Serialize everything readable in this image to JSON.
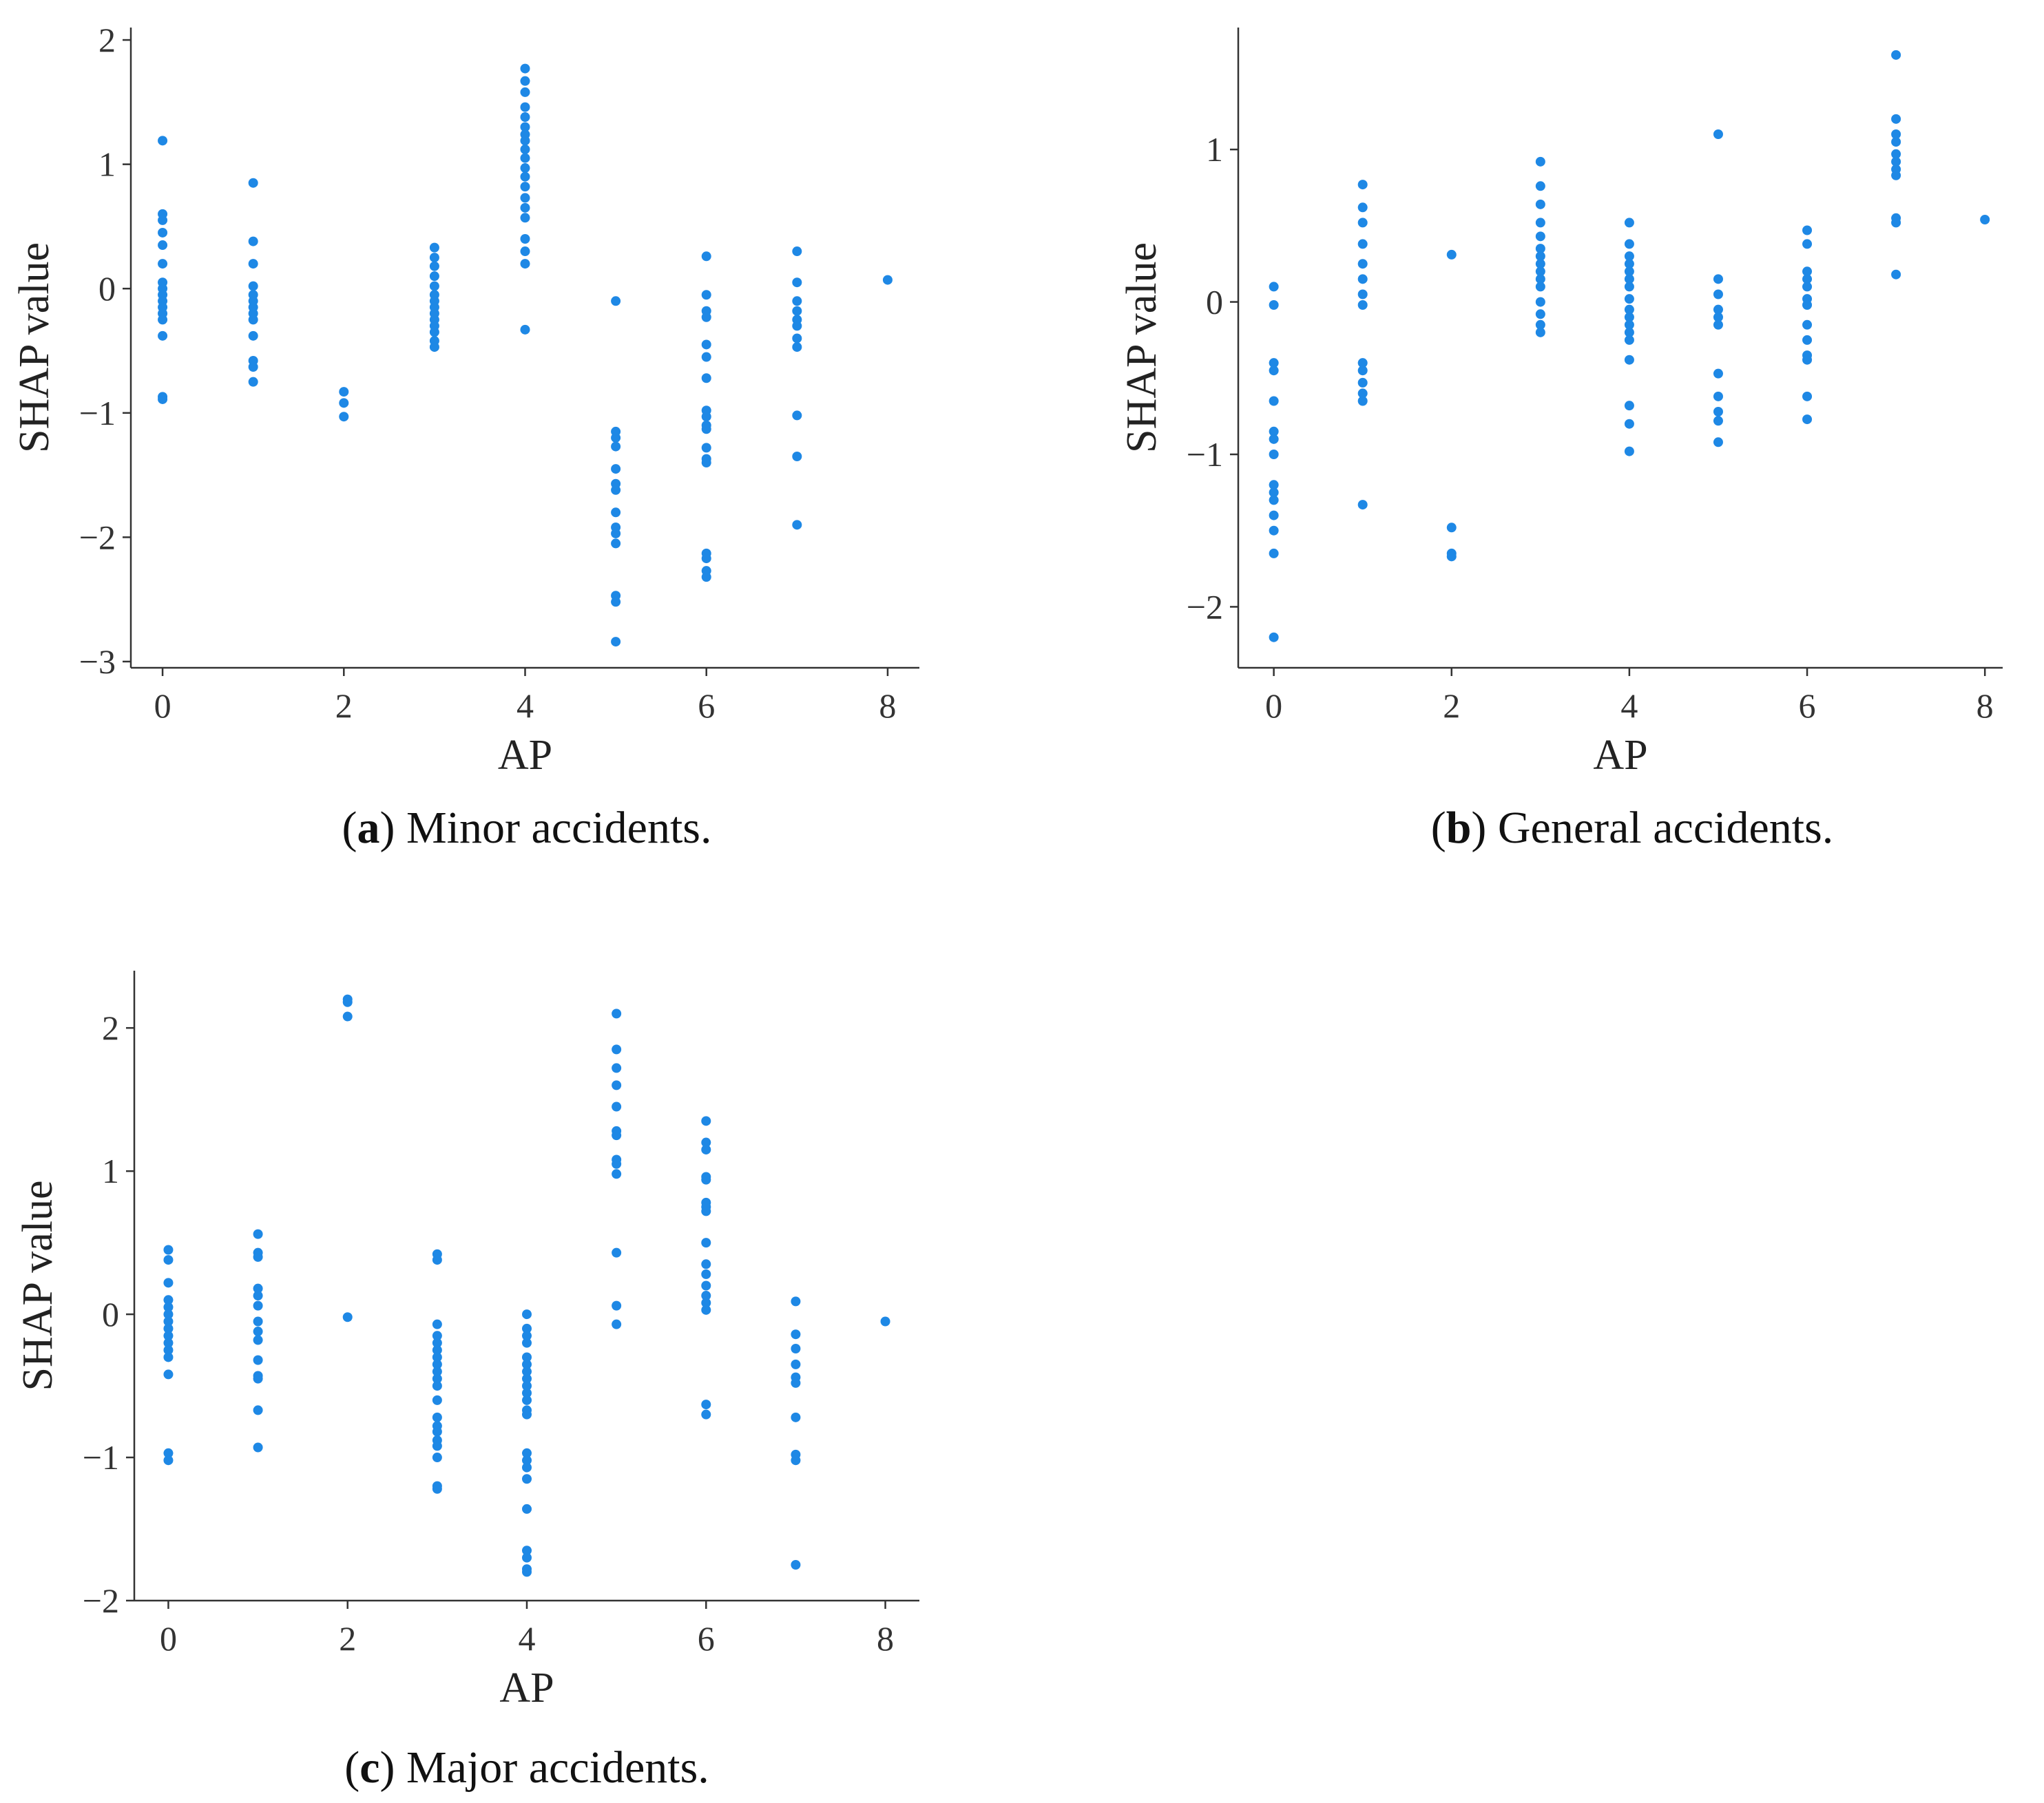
{
  "dot_color": "#1e88e5",
  "axis_color": "#333333",
  "chart_data": [
    {
      "id": "a",
      "type": "scatter",
      "caption_letter": "a",
      "caption_text": "Minor accidents.",
      "xlabel": "AP",
      "ylabel": "SHAP value",
      "xlim": [
        -0.35,
        8.35
      ],
      "ylim": [
        -3.05,
        2.1
      ],
      "xticks": [
        0,
        2,
        4,
        6,
        8
      ],
      "yticks": [
        -3,
        -2,
        -1,
        0,
        1,
        2
      ],
      "points": [
        [
          0,
          1.19
        ],
        [
          0,
          0.6
        ],
        [
          0,
          0.55
        ],
        [
          0,
          0.45
        ],
        [
          0,
          0.35
        ],
        [
          0,
          0.2
        ],
        [
          0,
          0.05
        ],
        [
          0,
          0.0
        ],
        [
          0,
          -0.05
        ],
        [
          0,
          -0.1
        ],
        [
          0,
          -0.15
        ],
        [
          0,
          -0.2
        ],
        [
          0,
          -0.25
        ],
        [
          0,
          -0.38
        ],
        [
          0,
          -0.87
        ],
        [
          0,
          -0.89
        ],
        [
          1,
          0.85
        ],
        [
          1,
          0.38
        ],
        [
          1,
          0.2
        ],
        [
          1,
          0.02
        ],
        [
          1,
          -0.05
        ],
        [
          1,
          -0.1
        ],
        [
          1,
          -0.15
        ],
        [
          1,
          -0.2
        ],
        [
          1,
          -0.25
        ],
        [
          1,
          -0.38
        ],
        [
          1,
          -0.58
        ],
        [
          1,
          -0.63
        ],
        [
          1,
          -0.75
        ],
        [
          2,
          -0.83
        ],
        [
          2,
          -0.92
        ],
        [
          2,
          -1.03
        ],
        [
          3,
          0.33
        ],
        [
          3,
          0.25
        ],
        [
          3,
          0.18
        ],
        [
          3,
          0.1
        ],
        [
          3,
          0.02
        ],
        [
          3,
          -0.05
        ],
        [
          3,
          -0.1
        ],
        [
          3,
          -0.15
        ],
        [
          3,
          -0.2
        ],
        [
          3,
          -0.25
        ],
        [
          3,
          -0.3
        ],
        [
          3,
          -0.35
        ],
        [
          3,
          -0.42
        ],
        [
          3,
          -0.47
        ],
        [
          4,
          1.77
        ],
        [
          4,
          1.67
        ],
        [
          4,
          1.58
        ],
        [
          4,
          1.46
        ],
        [
          4,
          1.38
        ],
        [
          4,
          1.3
        ],
        [
          4,
          1.24
        ],
        [
          4,
          1.19
        ],
        [
          4,
          1.12
        ],
        [
          4,
          1.05
        ],
        [
          4,
          0.97
        ],
        [
          4,
          0.9
        ],
        [
          4,
          0.82
        ],
        [
          4,
          0.73
        ],
        [
          4,
          0.65
        ],
        [
          4,
          0.57
        ],
        [
          4,
          0.4
        ],
        [
          4,
          0.3
        ],
        [
          4,
          0.2
        ],
        [
          4,
          -0.33
        ],
        [
          5,
          -0.1
        ],
        [
          5,
          -1.15
        ],
        [
          5,
          -1.2
        ],
        [
          5,
          -1.27
        ],
        [
          5,
          -1.45
        ],
        [
          5,
          -1.57
        ],
        [
          5,
          -1.62
        ],
        [
          5,
          -1.8
        ],
        [
          5,
          -1.92
        ],
        [
          5,
          -1.97
        ],
        [
          5,
          -2.05
        ],
        [
          5,
          -2.47
        ],
        [
          5,
          -2.52
        ],
        [
          5,
          -2.84
        ],
        [
          6,
          0.26
        ],
        [
          6,
          -0.05
        ],
        [
          6,
          -0.18
        ],
        [
          6,
          -0.23
        ],
        [
          6,
          -0.45
        ],
        [
          6,
          -0.55
        ],
        [
          6,
          -0.72
        ],
        [
          6,
          -0.98
        ],
        [
          6,
          -1.03
        ],
        [
          6,
          -1.1
        ],
        [
          6,
          -1.13
        ],
        [
          6,
          -1.28
        ],
        [
          6,
          -1.37
        ],
        [
          6,
          -1.4
        ],
        [
          6,
          -2.13
        ],
        [
          6,
          -2.17
        ],
        [
          6,
          -2.27
        ],
        [
          6,
          -2.32
        ],
        [
          7,
          0.3
        ],
        [
          7,
          0.05
        ],
        [
          7,
          -0.1
        ],
        [
          7,
          -0.18
        ],
        [
          7,
          -0.25
        ],
        [
          7,
          -0.3
        ],
        [
          7,
          -0.4
        ],
        [
          7,
          -0.47
        ],
        [
          7,
          -1.02
        ],
        [
          7,
          -1.35
        ],
        [
          7,
          -1.9
        ],
        [
          8,
          0.07
        ]
      ]
    },
    {
      "id": "b",
      "type": "scatter",
      "caption_letter": "b",
      "caption_text": "General accidents.",
      "xlabel": "AP",
      "ylabel": "SHAP value",
      "xlim": [
        -0.4,
        8.2
      ],
      "ylim": [
        -2.4,
        1.8
      ],
      "xticks": [
        0,
        2,
        4,
        6,
        8
      ],
      "yticks": [
        -2,
        -1,
        0,
        1
      ],
      "points": [
        [
          0,
          0.1
        ],
        [
          0,
          -0.02
        ],
        [
          0,
          -0.4
        ],
        [
          0,
          -0.45
        ],
        [
          0,
          -0.65
        ],
        [
          0,
          -0.85
        ],
        [
          0,
          -0.9
        ],
        [
          0,
          -1.0
        ],
        [
          0,
          -1.2
        ],
        [
          0,
          -1.25
        ],
        [
          0,
          -1.3
        ],
        [
          0,
          -1.4
        ],
        [
          0,
          -1.5
        ],
        [
          0,
          -1.65
        ],
        [
          0,
          -2.2
        ],
        [
          1,
          0.77
        ],
        [
          1,
          0.62
        ],
        [
          1,
          0.52
        ],
        [
          1,
          0.38
        ],
        [
          1,
          0.25
        ],
        [
          1,
          0.15
        ],
        [
          1,
          0.05
        ],
        [
          1,
          -0.02
        ],
        [
          1,
          -0.4
        ],
        [
          1,
          -0.45
        ],
        [
          1,
          -0.53
        ],
        [
          1,
          -0.6
        ],
        [
          1,
          -0.65
        ],
        [
          1,
          -1.33
        ],
        [
          2,
          0.31
        ],
        [
          2,
          -1.48
        ],
        [
          2,
          -1.65
        ],
        [
          2,
          -1.67
        ],
        [
          3,
          0.92
        ],
        [
          3,
          0.76
        ],
        [
          3,
          0.64
        ],
        [
          3,
          0.52
        ],
        [
          3,
          0.43
        ],
        [
          3,
          0.35
        ],
        [
          3,
          0.3
        ],
        [
          3,
          0.25
        ],
        [
          3,
          0.2
        ],
        [
          3,
          0.15
        ],
        [
          3,
          0.1
        ],
        [
          3,
          0.0
        ],
        [
          3,
          -0.08
        ],
        [
          3,
          -0.15
        ],
        [
          3,
          -0.2
        ],
        [
          4,
          0.52
        ],
        [
          4,
          0.38
        ],
        [
          4,
          0.3
        ],
        [
          4,
          0.25
        ],
        [
          4,
          0.2
        ],
        [
          4,
          0.15
        ],
        [
          4,
          0.1
        ],
        [
          4,
          0.02
        ],
        [
          4,
          -0.05
        ],
        [
          4,
          -0.1
        ],
        [
          4,
          -0.15
        ],
        [
          4,
          -0.2
        ],
        [
          4,
          -0.25
        ],
        [
          4,
          -0.38
        ],
        [
          4,
          -0.68
        ],
        [
          4,
          -0.8
        ],
        [
          4,
          -0.98
        ],
        [
          5,
          1.1
        ],
        [
          5,
          0.15
        ],
        [
          5,
          0.05
        ],
        [
          5,
          -0.05
        ],
        [
          5,
          -0.1
        ],
        [
          5,
          -0.15
        ],
        [
          5,
          -0.47
        ],
        [
          5,
          -0.62
        ],
        [
          5,
          -0.72
        ],
        [
          5,
          -0.78
        ],
        [
          5,
          -0.92
        ],
        [
          6,
          0.47
        ],
        [
          6,
          0.38
        ],
        [
          6,
          0.2
        ],
        [
          6,
          0.15
        ],
        [
          6,
          0.1
        ],
        [
          6,
          0.02
        ],
        [
          6,
          -0.02
        ],
        [
          6,
          -0.15
        ],
        [
          6,
          -0.25
        ],
        [
          6,
          -0.35
        ],
        [
          6,
          -0.38
        ],
        [
          6,
          -0.62
        ],
        [
          6,
          -0.77
        ],
        [
          7,
          1.62
        ],
        [
          7,
          1.2
        ],
        [
          7,
          1.1
        ],
        [
          7,
          1.05
        ],
        [
          7,
          0.97
        ],
        [
          7,
          0.92
        ],
        [
          7,
          0.87
        ],
        [
          7,
          0.83
        ],
        [
          7,
          0.55
        ],
        [
          7,
          0.52
        ],
        [
          7,
          0.18
        ],
        [
          8,
          0.54
        ]
      ]
    },
    {
      "id": "c",
      "type": "scatter",
      "caption_letter": "c",
      "caption_text": "Major accidents.",
      "xlabel": "AP",
      "ylabel": "SHAP value",
      "xlim": [
        -0.38,
        8.38
      ],
      "ylim": [
        -2.0,
        2.4
      ],
      "xticks": [
        0,
        2,
        4,
        6,
        8
      ],
      "yticks": [
        -2,
        -1,
        0,
        1,
        2
      ],
      "points": [
        [
          0,
          0.45
        ],
        [
          0,
          0.38
        ],
        [
          0,
          0.22
        ],
        [
          0,
          0.1
        ],
        [
          0,
          0.05
        ],
        [
          0,
          0.0
        ],
        [
          0,
          -0.05
        ],
        [
          0,
          -0.1
        ],
        [
          0,
          -0.15
        ],
        [
          0,
          -0.2
        ],
        [
          0,
          -0.25
        ],
        [
          0,
          -0.3
        ],
        [
          0,
          -0.42
        ],
        [
          0,
          -0.97
        ],
        [
          0,
          -1.02
        ],
        [
          1,
          0.56
        ],
        [
          1,
          0.43
        ],
        [
          1,
          0.4
        ],
        [
          1,
          0.18
        ],
        [
          1,
          0.13
        ],
        [
          1,
          0.06
        ],
        [
          1,
          -0.05
        ],
        [
          1,
          -0.12
        ],
        [
          1,
          -0.18
        ],
        [
          1,
          -0.32
        ],
        [
          1,
          -0.43
        ],
        [
          1,
          -0.45
        ],
        [
          1,
          -0.67
        ],
        [
          1,
          -0.93
        ],
        [
          2,
          2.2
        ],
        [
          2,
          2.18
        ],
        [
          2,
          2.08
        ],
        [
          2,
          -0.02
        ],
        [
          3,
          0.42
        ],
        [
          3,
          0.38
        ],
        [
          3,
          -0.07
        ],
        [
          3,
          -0.15
        ],
        [
          3,
          -0.2
        ],
        [
          3,
          -0.25
        ],
        [
          3,
          -0.3
        ],
        [
          3,
          -0.35
        ],
        [
          3,
          -0.4
        ],
        [
          3,
          -0.45
        ],
        [
          3,
          -0.5
        ],
        [
          3,
          -0.6
        ],
        [
          3,
          -0.72
        ],
        [
          3,
          -0.78
        ],
        [
          3,
          -0.82
        ],
        [
          3,
          -0.88
        ],
        [
          3,
          -0.92
        ],
        [
          3,
          -1.0
        ],
        [
          3,
          -1.2
        ],
        [
          3,
          -1.22
        ],
        [
          4,
          0.0
        ],
        [
          4,
          -0.1
        ],
        [
          4,
          -0.15
        ],
        [
          4,
          -0.2
        ],
        [
          4,
          -0.3
        ],
        [
          4,
          -0.35
        ],
        [
          4,
          -0.4
        ],
        [
          4,
          -0.45
        ],
        [
          4,
          -0.5
        ],
        [
          4,
          -0.55
        ],
        [
          4,
          -0.6
        ],
        [
          4,
          -0.67
        ],
        [
          4,
          -0.7
        ],
        [
          4,
          -0.97
        ],
        [
          4,
          -1.02
        ],
        [
          4,
          -1.07
        ],
        [
          4,
          -1.15
        ],
        [
          4,
          -1.36
        ],
        [
          4,
          -1.65
        ],
        [
          4,
          -1.7
        ],
        [
          4,
          -1.78
        ],
        [
          4,
          -1.8
        ],
        [
          5,
          2.1
        ],
        [
          5,
          1.85
        ],
        [
          5,
          1.72
        ],
        [
          5,
          1.6
        ],
        [
          5,
          1.45
        ],
        [
          5,
          1.28
        ],
        [
          5,
          1.25
        ],
        [
          5,
          1.08
        ],
        [
          5,
          1.05
        ],
        [
          5,
          0.98
        ],
        [
          5,
          0.43
        ],
        [
          5,
          0.06
        ],
        [
          5,
          -0.07
        ],
        [
          6,
          1.35
        ],
        [
          6,
          1.2
        ],
        [
          6,
          1.15
        ],
        [
          6,
          0.96
        ],
        [
          6,
          0.94
        ],
        [
          6,
          0.78
        ],
        [
          6,
          0.75
        ],
        [
          6,
          0.72
        ],
        [
          6,
          0.5
        ],
        [
          6,
          0.35
        ],
        [
          6,
          0.28
        ],
        [
          6,
          0.2
        ],
        [
          6,
          0.13
        ],
        [
          6,
          0.08
        ],
        [
          6,
          0.03
        ],
        [
          6,
          -0.63
        ],
        [
          6,
          -0.7
        ],
        [
          7,
          0.09
        ],
        [
          7,
          -0.14
        ],
        [
          7,
          -0.24
        ],
        [
          7,
          -0.35
        ],
        [
          7,
          -0.44
        ],
        [
          7,
          -0.48
        ],
        [
          7,
          -0.72
        ],
        [
          7,
          -0.98
        ],
        [
          7,
          -1.02
        ],
        [
          7,
          -1.75
        ],
        [
          8,
          -0.05
        ]
      ]
    }
  ]
}
